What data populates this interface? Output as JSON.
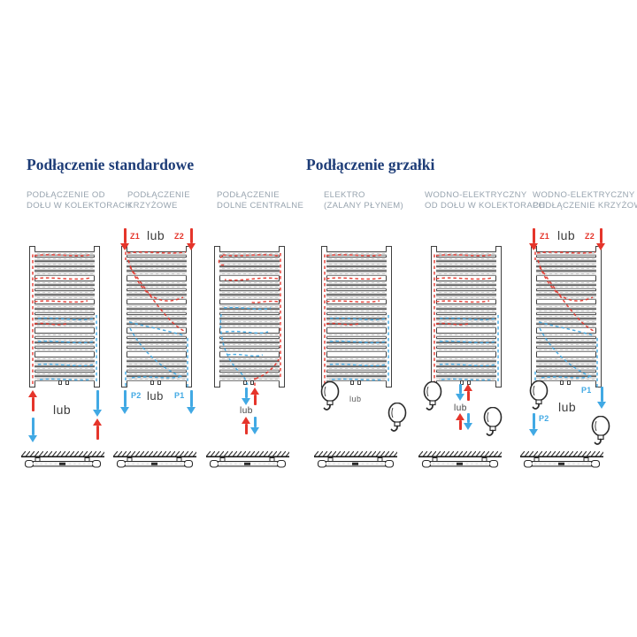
{
  "sections": [
    {
      "title": "Podłączenie standardowe"
    },
    {
      "title": "Podłączenie grzałki"
    }
  ],
  "diagrams": [
    {
      "label1": "PODŁĄCZENIE OD",
      "label2": "DOŁU W KOLEKTORACH",
      "flow": "collectors"
    },
    {
      "label1": "PODŁĄCZENIE",
      "label2": "KRZYŻOWE",
      "flow": "cross"
    },
    {
      "label1": "PODŁĄCZENIE",
      "label2": "DOLNE CENTRALNE",
      "flow": "central"
    },
    {
      "label1": "ELEKTRO",
      "label2": "(ZALANY PŁYNEM)",
      "flow": "collectors"
    },
    {
      "label1": "WODNO-ELEKTRYCZNY",
      "label2": "OD DOŁU W KOLEKTORACH",
      "flow": "collectors"
    },
    {
      "label1": "WODNO-ELEKTRYCZNY",
      "label2": "PODŁĄCZENIE KRZYŻOWE",
      "flow": "cross"
    }
  ],
  "labels": {
    "or": "lub",
    "z1": "Z1",
    "z2": "Z2",
    "p1": "P1",
    "p2": "P2"
  },
  "colors": {
    "heading": "#1d3c77",
    "sublabel": "#98a4af",
    "hot": "#e5352b",
    "cold": "#41a9e4"
  }
}
